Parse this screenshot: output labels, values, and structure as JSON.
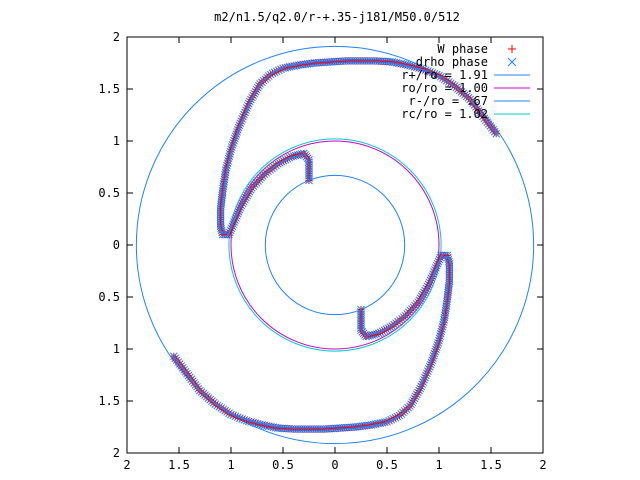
{
  "chart_data": {
    "type": "scatter",
    "title": "m2/n1.5/q2.0/r-+.35-j181/M50.0/512",
    "xlabel": "",
    "ylabel": "",
    "xlim": [
      -2,
      2
    ],
    "ylim": [
      -2,
      2
    ],
    "x_tick_labels": [
      "2",
      "1.5",
      "1",
      "0.5",
      "0",
      "0.5",
      "1",
      "1.5",
      "2"
    ],
    "y_tick_labels": [
      "2",
      "1.5",
      "1",
      "0.5",
      "0",
      "0.5",
      "1",
      "1.5",
      "2"
    ],
    "grid": false,
    "legend_position": "top-right",
    "series": [
      {
        "name": "W phase",
        "kind": "points",
        "marker": "plus",
        "color": "#ff0000",
        "description_points": "two-armed spiral, shown via arm sample points"
      },
      {
        "name": "drho phase",
        "kind": "points",
        "marker": "cross",
        "color": "#1e82ff"
      },
      {
        "name": "r+/ro = 1.91",
        "kind": "circle",
        "radius": 1.91,
        "color": "#1e82ff"
      },
      {
        "name": "ro/ro = 1.00",
        "kind": "circle",
        "radius": 1.0,
        "color": "#cc00cc"
      },
      {
        "name": "r-/ro = .67",
        "kind": "circle",
        "radius": 0.67,
        "color": "#1e82ff"
      },
      {
        "name": "rc/ro = 1.02",
        "kind": "circle",
        "radius": 1.02,
        "color": "#00cccc"
      }
    ],
    "arm_points": [
      [
        1.55,
        1.07
      ],
      [
        1.45,
        1.2
      ],
      [
        1.3,
        1.4
      ],
      [
        1.15,
        1.53
      ],
      [
        1.0,
        1.63
      ],
      [
        0.85,
        1.69
      ],
      [
        0.7,
        1.73
      ],
      [
        0.55,
        1.76
      ],
      [
        0.4,
        1.77
      ],
      [
        0.25,
        1.77
      ],
      [
        0.1,
        1.77
      ],
      [
        -0.05,
        1.76
      ],
      [
        -0.2,
        1.75
      ],
      [
        -0.35,
        1.73
      ],
      [
        -0.5,
        1.7
      ],
      [
        -0.62,
        1.64
      ],
      [
        -0.72,
        1.55
      ],
      [
        -0.82,
        1.38
      ],
      [
        -0.92,
        1.15
      ],
      [
        -1.0,
        0.92
      ],
      [
        -1.05,
        0.72
      ],
      [
        -1.08,
        0.52
      ],
      [
        -1.1,
        0.35
      ],
      [
        -1.1,
        0.18
      ],
      [
        -1.08,
        0.1
      ],
      [
        -1.02,
        0.1
      ],
      [
        -0.97,
        0.22
      ],
      [
        -0.9,
        0.38
      ],
      [
        -0.8,
        0.55
      ],
      [
        -0.68,
        0.68
      ],
      [
        -0.55,
        0.78
      ],
      [
        -0.42,
        0.85
      ],
      [
        -0.3,
        0.88
      ],
      [
        -0.25,
        0.82
      ],
      [
        -0.25,
        0.62
      ]
    ]
  }
}
